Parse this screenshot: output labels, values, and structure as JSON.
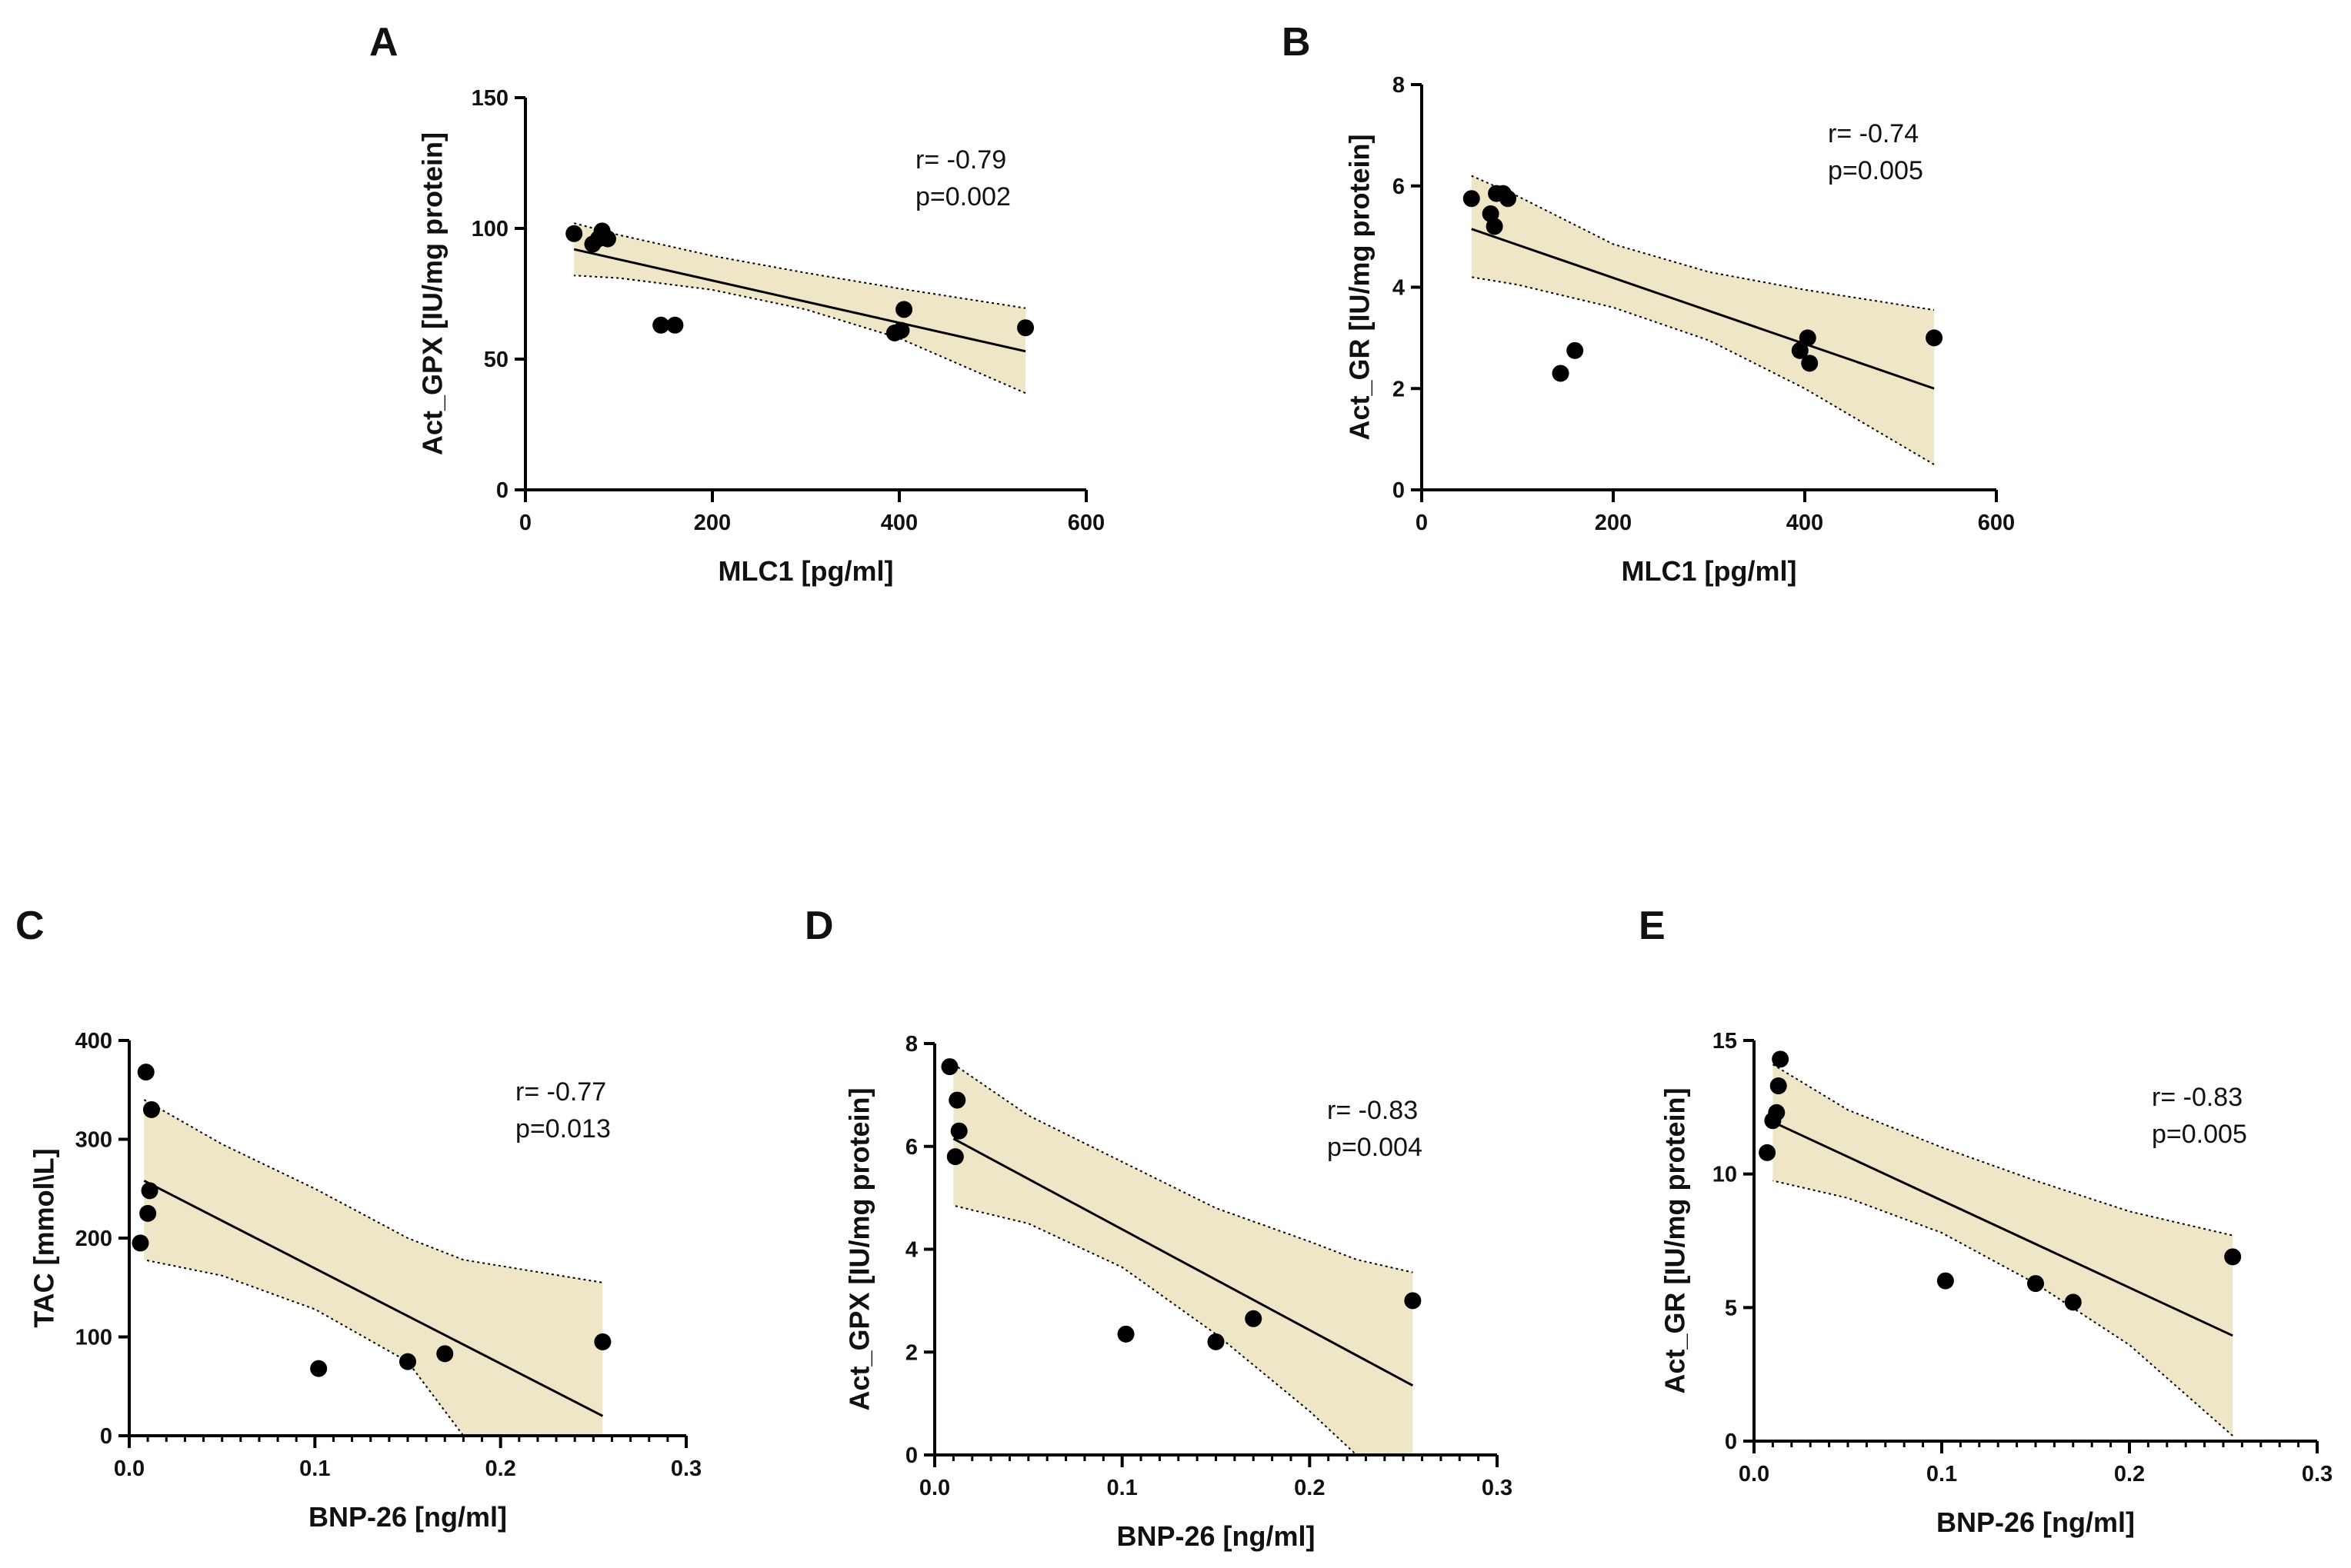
{
  "colors": {
    "band": "#efe6c8",
    "ink": "#000000"
  },
  "chart_data": [
    {
      "id": "A",
      "type": "scatter",
      "panel_label": "A",
      "xlabel": "MLC1 [pg/ml]",
      "ylabel": "Act_GPX [IU/mg protein]",
      "xlim": [
        0,
        600
      ],
      "ylim": [
        0,
        150
      ],
      "xticks": [
        0,
        200,
        400,
        600
      ],
      "xticklabels": [
        "0",
        "200",
        "400",
        "600"
      ],
      "yticks": [
        0,
        50,
        100,
        150
      ],
      "yticklabels": [
        "0",
        "50",
        "100",
        "150"
      ],
      "minor_x": false,
      "stats": [
        "r= -0.79",
        "p=0.002"
      ],
      "points": [
        [
          52,
          98
        ],
        [
          72,
          94
        ],
        [
          78,
          96
        ],
        [
          82,
          99
        ],
        [
          88,
          96
        ],
        [
          145,
          63
        ],
        [
          160,
          63
        ],
        [
          395,
          60
        ],
        [
          402,
          61
        ],
        [
          405,
          69
        ],
        [
          535,
          62
        ]
      ],
      "fit": {
        "x": [
          52,
          535
        ],
        "y": [
          92.0,
          53.0
        ]
      },
      "band": {
        "x": [
          52,
          100,
          200,
          300,
          400,
          535
        ],
        "upper": [
          102.0,
          97.5,
          89.5,
          83.0,
          77.0,
          69.5
        ],
        "lower": [
          82.0,
          81.0,
          76.5,
          69.0,
          58.0,
          37.0
        ]
      }
    },
    {
      "id": "B",
      "type": "scatter",
      "panel_label": "B",
      "xlabel": "MLC1 [pg/ml]",
      "ylabel": "Act_GR [IU/mg protein]",
      "xlim": [
        0,
        600
      ],
      "ylim": [
        0,
        8
      ],
      "xticks": [
        0,
        200,
        400,
        600
      ],
      "xticklabels": [
        "0",
        "200",
        "400",
        "600"
      ],
      "yticks": [
        0,
        2,
        4,
        6,
        8
      ],
      "yticklabels": [
        "0",
        "2",
        "4",
        "6",
        "8"
      ],
      "minor_x": false,
      "stats": [
        "r= -0.74",
        "p=0.005"
      ],
      "points": [
        [
          52,
          5.75
        ],
        [
          72,
          5.45
        ],
        [
          76,
          5.2
        ],
        [
          78,
          5.85
        ],
        [
          85,
          5.85
        ],
        [
          90,
          5.75
        ],
        [
          145,
          2.3
        ],
        [
          160,
          2.75
        ],
        [
          395,
          2.75
        ],
        [
          403,
          3.0
        ],
        [
          405,
          2.5
        ],
        [
          535,
          3.0
        ]
      ],
      "fit": {
        "x": [
          52,
          535
        ],
        "y": [
          5.15,
          2.0
        ]
      },
      "band": {
        "x": [
          52,
          100,
          200,
          300,
          400,
          535
        ],
        "upper": [
          6.2,
          5.8,
          4.85,
          4.3,
          3.95,
          3.55
        ],
        "lower": [
          4.2,
          4.05,
          3.6,
          2.95,
          2.0,
          0.5
        ]
      }
    },
    {
      "id": "C",
      "type": "scatter",
      "panel_label": "C",
      "xlabel": "BNP-26 [ng/ml]",
      "ylabel": "TAC [mmol\\L]",
      "xlim": [
        0,
        0.3
      ],
      "ylim": [
        0,
        400
      ],
      "xticks": [
        0,
        0.1,
        0.2,
        0.3
      ],
      "xticklabels": [
        "0.0",
        "0.1",
        "0.2",
        "0.3"
      ],
      "yticks": [
        0,
        100,
        200,
        300,
        400
      ],
      "yticklabels": [
        "0",
        "100",
        "200",
        "300",
        "400"
      ],
      "minor_x": true,
      "stats": [
        "r= -0.77",
        "p=0.013"
      ],
      "points": [
        [
          0.006,
          195
        ],
        [
          0.009,
          368
        ],
        [
          0.01,
          225
        ],
        [
          0.011,
          248
        ],
        [
          0.012,
          330
        ],
        [
          0.102,
          68
        ],
        [
          0.15,
          75
        ],
        [
          0.17,
          83
        ],
        [
          0.255,
          95
        ]
      ],
      "fit": {
        "x": [
          0.008,
          0.255
        ],
        "y": [
          258,
          20
        ]
      },
      "band": {
        "x": [
          0.008,
          0.05,
          0.1,
          0.15,
          0.18,
          0.255
        ],
        "upper": [
          340,
          295,
          250,
          200,
          178,
          155
        ],
        "lower": [
          178,
          162,
          128,
          75,
          0,
          0
        ]
      }
    },
    {
      "id": "D",
      "type": "scatter",
      "panel_label": "D",
      "xlabel": "BNP-26 [ng/ml]",
      "ylabel": "Act_GPX [IU/mg protein]",
      "xlim": [
        0,
        0.3
      ],
      "ylim": [
        0,
        8
      ],
      "xticks": [
        0,
        0.1,
        0.2,
        0.3
      ],
      "xticklabels": [
        "0.0",
        "0.1",
        "0.2",
        "0.3"
      ],
      "yticks": [
        0,
        2,
        4,
        6,
        8
      ],
      "yticklabels": [
        "0",
        "2",
        "4",
        "6",
        "8"
      ],
      "minor_x": true,
      "stats": [
        "r= -0.83",
        "p=0.004"
      ],
      "points": [
        [
          0.008,
          7.55
        ],
        [
          0.011,
          5.8
        ],
        [
          0.012,
          6.9
        ],
        [
          0.013,
          6.3
        ],
        [
          0.102,
          2.35
        ],
        [
          0.15,
          2.2
        ],
        [
          0.17,
          2.65
        ],
        [
          0.255,
          3.0
        ]
      ],
      "fit": {
        "x": [
          0.01,
          0.255
        ],
        "y": [
          6.15,
          1.35
        ]
      },
      "band": {
        "x": [
          0.01,
          0.05,
          0.1,
          0.15,
          0.2,
          0.225,
          0.255
        ],
        "upper": [
          7.6,
          6.6,
          5.7,
          4.8,
          4.15,
          3.8,
          3.55
        ],
        "lower": [
          4.85,
          4.5,
          3.65,
          2.35,
          0.85,
          0.0,
          0.0
        ]
      }
    },
    {
      "id": "E",
      "type": "scatter",
      "panel_label": "E",
      "xlabel": "BNP-26 [ng/ml]",
      "ylabel": "Act_GR [IU/mg protein]",
      "xlim": [
        0,
        0.3
      ],
      "ylim": [
        0,
        15
      ],
      "xticks": [
        0,
        0.1,
        0.2,
        0.3
      ],
      "xticklabels": [
        "0.0",
        "0.1",
        "0.2",
        "0.3"
      ],
      "yticks": [
        0,
        5,
        10,
        15
      ],
      "yticklabels": [
        "0",
        "5",
        "10",
        "15"
      ],
      "minor_x": true,
      "stats": [
        "r= -0.83",
        "p=0.005"
      ],
      "points": [
        [
          0.007,
          10.8
        ],
        [
          0.01,
          12.0
        ],
        [
          0.012,
          12.3
        ],
        [
          0.013,
          13.3
        ],
        [
          0.014,
          14.3
        ],
        [
          0.102,
          6.0
        ],
        [
          0.15,
          5.9
        ],
        [
          0.17,
          5.2
        ],
        [
          0.255,
          6.9
        ]
      ],
      "fit": {
        "x": [
          0.01,
          0.255
        ],
        "y": [
          11.95,
          3.95
        ]
      },
      "band": {
        "x": [
          0.01,
          0.05,
          0.1,
          0.15,
          0.2,
          0.255
        ],
        "upper": [
          14.1,
          12.4,
          11.0,
          9.75,
          8.6,
          7.7
        ],
        "lower": [
          9.75,
          9.1,
          7.8,
          5.9,
          3.6,
          0.2
        ]
      }
    }
  ]
}
